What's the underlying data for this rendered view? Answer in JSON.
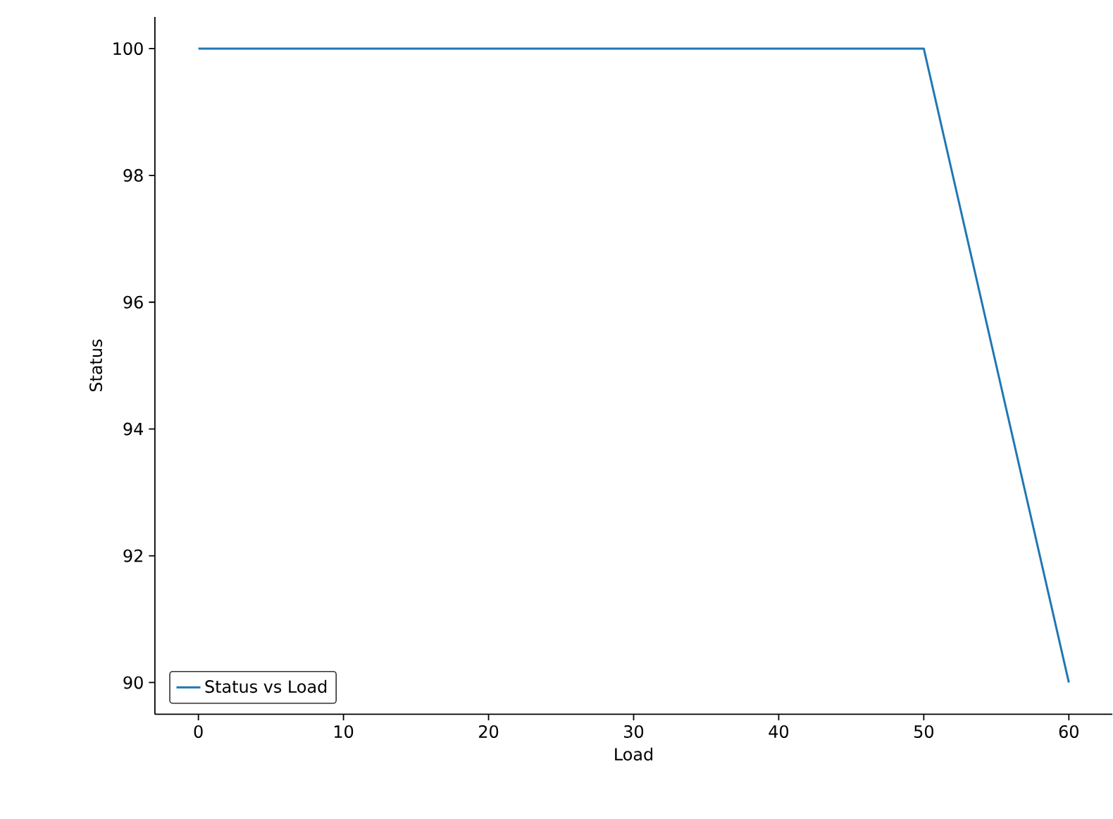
{
  "chart_data": {
    "type": "line",
    "xlabel": "Load",
    "ylabel": "Status",
    "x": [
      0,
      50,
      60
    ],
    "series": [
      {
        "name": "Status vs Load",
        "color": "#1f77b4",
        "values": [
          100,
          100,
          90
        ]
      }
    ],
    "xlim": [
      -3,
      63
    ],
    "ylim": [
      89.5,
      100.5
    ],
    "xticks": [
      0,
      10,
      20,
      30,
      40,
      50,
      60
    ],
    "yticks": [
      90,
      92,
      94,
      96,
      98,
      100
    ],
    "grid": false,
    "legend": "bottom left",
    "marker": "none",
    "line_style": "solid"
  }
}
